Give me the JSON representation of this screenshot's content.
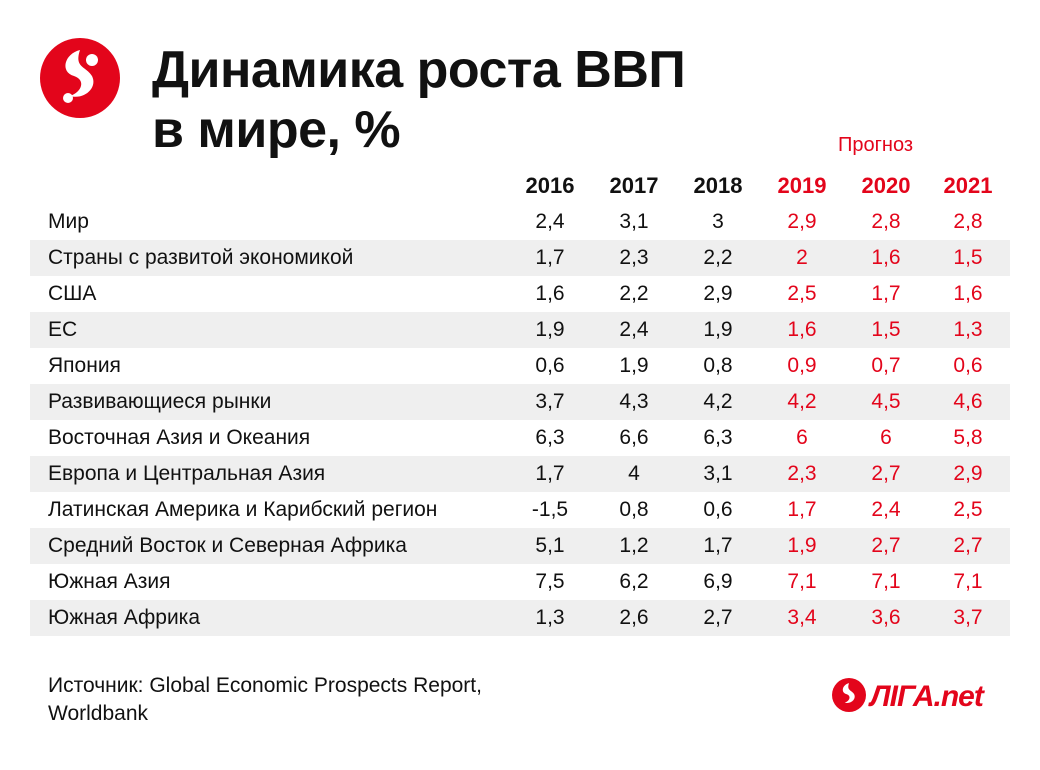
{
  "title": "Динамика роста ВВП\nв мире, %",
  "forecast_label": "Прогноз",
  "source": "Источник: Global Economic Prospects Report, Worldbank",
  "brand_logo_text": "ЛІГА.net",
  "colors": {
    "accent": "#e3051b",
    "shade": "#efefef",
    "text": "#111111"
  },
  "icons": {
    "logo": "liga-logo-icon"
  },
  "chart_data": {
    "type": "table",
    "columns": [
      "2016",
      "2017",
      "2018",
      "2019",
      "2020",
      "2021"
    ],
    "forecast_columns": [
      "2019",
      "2020",
      "2021"
    ],
    "rows": [
      {
        "label": "Мир",
        "values": [
          "2,4",
          "3,1",
          "3",
          "2,9",
          "2,8",
          "2,8"
        ]
      },
      {
        "label": "Страны с развитой экономикой",
        "values": [
          "1,7",
          "2,3",
          "2,2",
          "2",
          "1,6",
          "1,5"
        ]
      },
      {
        "label": "США",
        "values": [
          "1,6",
          "2,2",
          "2,9",
          "2,5",
          "1,7",
          "1,6"
        ]
      },
      {
        "label": "ЕС",
        "values": [
          "1,9",
          "2,4",
          "1,9",
          "1,6",
          "1,5",
          "1,3"
        ]
      },
      {
        "label": "Япония",
        "values": [
          "0,6",
          "1,9",
          "0,8",
          "0,9",
          "0,7",
          "0,6"
        ]
      },
      {
        "label": "Развивающиеся рынки",
        "values": [
          "3,7",
          "4,3",
          "4,2",
          "4,2",
          "4,5",
          "4,6"
        ]
      },
      {
        "label": "Восточная Азия и Океания",
        "values": [
          "6,3",
          "6,6",
          "6,3",
          "6",
          "6",
          "5,8"
        ]
      },
      {
        "label": "Европа и Центральная Азия",
        "values": [
          "1,7",
          "4",
          "3,1",
          "2,3",
          "2,7",
          "2,9"
        ]
      },
      {
        "label": "Латинская Америка и Карибский регион",
        "values": [
          "-1,5",
          "0,8",
          "0,6",
          "1,7",
          "2,4",
          "2,5"
        ]
      },
      {
        "label": "Средний Восток и Северная Африка",
        "values": [
          "5,1",
          "1,2",
          "1,7",
          "1,9",
          "2,7",
          "2,7"
        ]
      },
      {
        "label": "Южная Азия",
        "values": [
          "7,5",
          "6,2",
          "6,9",
          "7,1",
          "7,1",
          "7,1"
        ]
      },
      {
        "label": "Южная Африка",
        "values": [
          "1,3",
          "2,6",
          "2,7",
          "3,4",
          "3,6",
          "3,7"
        ]
      }
    ]
  }
}
